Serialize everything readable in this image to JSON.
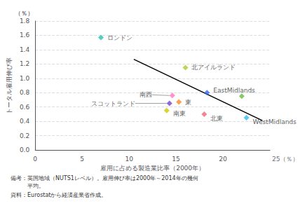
{
  "chart_data": {
    "type": "scatter",
    "xlabel": "雇用に占める製造業比率（2000年）",
    "ylabel": "トータル雇用伸び率",
    "y_unit_label": "（％）",
    "x_unit_label": "25（％）",
    "notes": [
      "備考：英国地域（NUTS1レベル）。雇用伸び率は2000年～2014年の幾何",
      "　　　平均。",
      "資料：Eurostatから経済産業省作成。"
    ],
    "xlim": [
      0,
      25
    ],
    "xticks": [
      0,
      5,
      10,
      15,
      20
    ],
    "ylim": [
      0.0,
      1.8
    ],
    "yticks": [
      {
        "value": 0,
        "label": "0.0"
      },
      0.2,
      0.4,
      0.6,
      0.8,
      {
        "value": 1,
        "label": "1.0"
      },
      1.2,
      1.4,
      1.6,
      1.8
    ],
    "grid": true,
    "series": [
      {
        "type": "scatter",
        "marker": "diamond",
        "x": [
          7.0,
          16.0,
          14.3,
          14.6,
          15.3,
          14.0,
          18.0,
          18.3,
          22.5,
          22.0
        ],
        "values": [
          1.57,
          1.15,
          0.65,
          0.76,
          0.67,
          0.55,
          0.5,
          0.8,
          0.45,
          0.75
        ],
        "colors": [
          "#2EBFB0",
          "#AACC33",
          "#7744CC",
          "#FF77BB",
          "#FF8822",
          "#CCCC00",
          "#EE6677",
          "#3366EE",
          "#33BBEE",
          "#66BB44"
        ],
        "labels": [
          "ロンドン",
          "北アイルランド",
          "スコットランド",
          "南西",
          "東",
          "南東",
          "北東",
          "EastMidlands",
          "WestMidlands",
          null
        ]
      },
      {
        "type": "line",
        "x": [
          10.5,
          24.2
        ],
        "values": [
          1.265,
          0.41
        ],
        "color": "#000000"
      }
    ]
  }
}
